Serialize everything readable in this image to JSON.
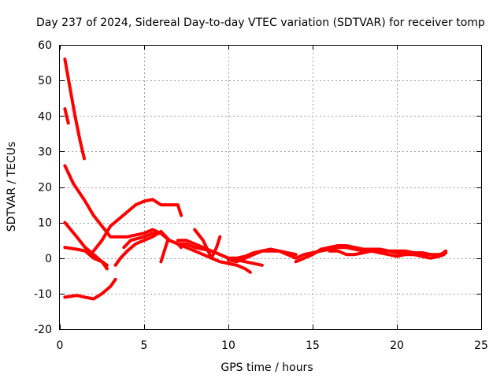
{
  "chart_data": {
    "type": "line",
    "title": "Day 237 of 2024, Sidereal Day-to-day VTEC variation (SDTVAR) for receiver tomp",
    "xlabel": "GPS time / hours",
    "ylabel": "SDTVAR / TECUs",
    "xlim": [
      0,
      25
    ],
    "ylim": [
      -20,
      60
    ],
    "xticks": [
      0,
      5,
      10,
      15,
      20,
      25
    ],
    "yticks": [
      -20,
      -10,
      0,
      10,
      20,
      30,
      40,
      50,
      60
    ],
    "xtick_labels": [
      "0",
      "5",
      "10",
      "15",
      "20",
      "25"
    ],
    "ytick_labels": [
      "-20",
      "-10",
      "0",
      "10",
      "20",
      "30",
      "40",
      "50",
      "60"
    ],
    "grid": true,
    "color": "#ff0000",
    "series": [
      {
        "name": "s1",
        "x": [
          0.3,
          0.6,
          0.9,
          1.2,
          1.45
        ],
        "y": [
          56,
          48,
          40,
          33,
          28
        ]
      },
      {
        "name": "s2",
        "x": [
          0.3,
          0.4,
          0.5
        ],
        "y": [
          42,
          40,
          38
        ]
      },
      {
        "name": "s3",
        "x": [
          0.3,
          0.8,
          1.5,
          2.0,
          2.5,
          3.0,
          4.0,
          5.0,
          5.5,
          6.0,
          6.5,
          7.0,
          7.2
        ],
        "y": [
          26,
          21,
          16,
          12,
          9,
          6,
          6,
          7,
          8,
          7,
          5,
          4,
          3
        ]
      },
      {
        "name": "s4",
        "x": [
          2.0,
          2.5,
          3.0,
          3.5,
          4.0,
          4.5,
          5.0,
          5.5,
          6.0,
          6.5,
          7.0,
          7.2
        ],
        "y": [
          2,
          5,
          9,
          11,
          13,
          15,
          16,
          16.5,
          15,
          15,
          15,
          12
        ]
      },
      {
        "name": "s5",
        "x": [
          0.3,
          1.0,
          1.5,
          2.0,
          2.5,
          2.8
        ],
        "y": [
          10,
          6,
          3,
          1,
          -1,
          -3
        ]
      },
      {
        "name": "s6",
        "x": [
          0.3,
          1.0,
          1.5,
          2.0,
          2.5,
          2.8
        ],
        "y": [
          3,
          2.5,
          2,
          0,
          -1,
          -2
        ]
      },
      {
        "name": "s7",
        "x": [
          0.3,
          1.0,
          1.5,
          2.0,
          2.5,
          3.0,
          3.3
        ],
        "y": [
          -11,
          -10.5,
          -11,
          -11.5,
          -10,
          -8,
          -6
        ]
      },
      {
        "name": "s8",
        "x": [
          3.3,
          3.6,
          4.0,
          4.5,
          5.0,
          5.5,
          6.0,
          6.5,
          7.0,
          7.5,
          8.0,
          8.5,
          9.0,
          9.5,
          10.0,
          10.5,
          11.0,
          11.3
        ],
        "y": [
          -2,
          0,
          2,
          4,
          5,
          6,
          7.5,
          5,
          4,
          3,
          2,
          1,
          0,
          -1,
          -1.5,
          -2,
          -3,
          -4
        ]
      },
      {
        "name": "s9",
        "x": [
          3.8,
          4.2,
          5.0,
          5.5,
          6.0,
          6.5,
          7.0,
          7.5,
          8.0,
          9.0,
          10.0,
          11.0,
          12.0
        ],
        "y": [
          3,
          5,
          6,
          7,
          7,
          5,
          4,
          4,
          3,
          2,
          0,
          -1,
          -2
        ]
      },
      {
        "name": "s10",
        "x": [
          6.0,
          6.2,
          6.4
        ],
        "y": [
          -1,
          2,
          5
        ]
      },
      {
        "name": "s11",
        "x": [
          8.0,
          8.5,
          8.8,
          9.0,
          9.3,
          9.5
        ],
        "y": [
          8,
          5,
          2,
          0,
          3,
          6
        ]
      },
      {
        "name": "s12",
        "x": [
          7.0,
          7.5,
          8.0,
          8.5,
          9.0,
          9.5,
          10.0,
          10.5,
          11.0,
          11.5,
          12.0,
          12.5,
          13.0,
          13.5,
          14.0
        ],
        "y": [
          5,
          5,
          4,
          3,
          2,
          1,
          0,
          0,
          0.5,
          1.5,
          2,
          2.5,
          2,
          1.5,
          1
        ]
      },
      {
        "name": "s13",
        "x": [
          10.0,
          10.5,
          11.0,
          11.5,
          12.0,
          12.5,
          13.0,
          13.5,
          14.0,
          14.5,
          15.0,
          15.5,
          16.0,
          16.5,
          17.0,
          17.5,
          18.0,
          18.5,
          19.0,
          19.5,
          20.0,
          20.5,
          21.0,
          21.5,
          22.0,
          22.5,
          22.9
        ],
        "y": [
          -0.5,
          -1,
          0,
          1,
          2,
          2,
          2,
          1,
          0,
          1,
          1.5,
          2,
          2.5,
          3,
          3,
          2.5,
          2,
          2,
          2,
          2,
          1.5,
          1.5,
          1,
          1,
          1,
          1,
          1.5
        ]
      },
      {
        "name": "s14",
        "x": [
          14.0,
          14.5,
          15.0,
          15.5,
          16.0,
          16.5,
          17.0,
          17.5,
          18.0,
          18.5,
          19.0,
          19.5,
          20.0,
          20.5,
          21.0,
          21.5,
          22.0,
          22.5,
          22.9
        ],
        "y": [
          -1,
          0,
          1,
          2.5,
          3,
          3.5,
          3.5,
          3,
          2.5,
          2.5,
          2.5,
          2,
          2,
          2,
          1.5,
          1.5,
          1,
          0.5,
          2
        ]
      },
      {
        "name": "s15",
        "x": [
          16.0,
          16.5,
          17.0,
          17.5,
          18.0,
          18.5,
          19.0,
          19.5,
          20.0,
          20.5,
          21.0,
          21.5,
          22.0,
          22.5,
          22.8
        ],
        "y": [
          2,
          2,
          1,
          1,
          1.5,
          2,
          1.5,
          1,
          0.5,
          1,
          1,
          0.5,
          0,
          0.5,
          1
        ]
      }
    ]
  }
}
